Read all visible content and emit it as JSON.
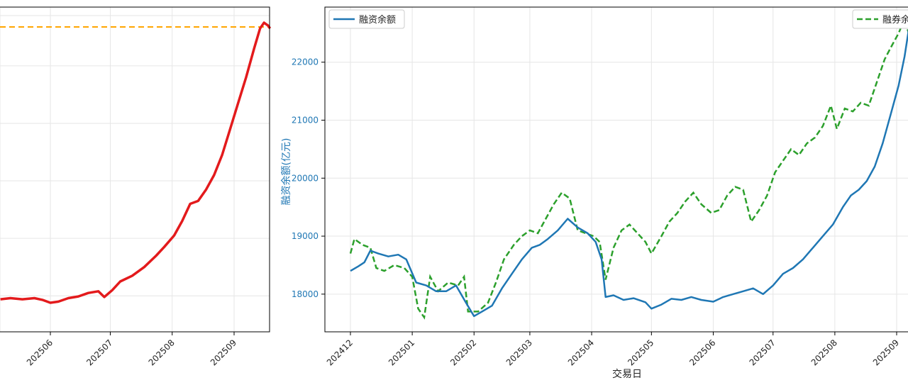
{
  "chart_data": [
    {
      "type": "line",
      "title": "",
      "xlabel": "",
      "ylabel": "",
      "x_tick_labels": [
        "202506",
        "202507",
        "202508",
        "202509"
      ],
      "x_visible_range": [
        "2025-05-07",
        "2025-09-20"
      ],
      "grid": true,
      "reference_line": {
        "style": "dashed",
        "color": "#ffa500",
        "level": "near series maximum"
      },
      "series": [
        {
          "color": "#e31a1c",
          "style": "solid",
          "points": [
            [
              "2025-05-07",
              17940
            ],
            [
              "2025-05-12",
              17960
            ],
            [
              "2025-05-18",
              17940
            ],
            [
              "2025-05-24",
              17960
            ],
            [
              "2025-05-28",
              17930
            ],
            [
              "2025-06-01",
              17880
            ],
            [
              "2025-06-05",
              17900
            ],
            [
              "2025-06-10",
              17960
            ],
            [
              "2025-06-15",
              17990
            ],
            [
              "2025-06-20",
              18050
            ],
            [
              "2025-06-25",
              18080
            ],
            [
              "2025-06-28",
              17980
            ],
            [
              "2025-07-02",
              18100
            ],
            [
              "2025-07-06",
              18250
            ],
            [
              "2025-07-12",
              18350
            ],
            [
              "2025-07-18",
              18500
            ],
            [
              "2025-07-24",
              18700
            ],
            [
              "2025-07-28",
              18850
            ],
            [
              "2025-08-02",
              19050
            ],
            [
              "2025-08-06",
              19300
            ],
            [
              "2025-08-10",
              19600
            ],
            [
              "2025-08-14",
              19650
            ],
            [
              "2025-08-18",
              19850
            ],
            [
              "2025-08-22",
              20100
            ],
            [
              "2025-08-26",
              20450
            ],
            [
              "2025-08-30",
              20900
            ],
            [
              "2025-09-03",
              21350
            ],
            [
              "2025-09-07",
              21800
            ],
            [
              "2025-09-11",
              22300
            ],
            [
              "2025-09-14",
              22650
            ],
            [
              "2025-09-16",
              22750
            ],
            [
              "2025-09-18",
              22700
            ],
            [
              "2025-09-19",
              22650
            ]
          ]
        }
      ]
    },
    {
      "type": "line",
      "title": "",
      "xlabel": "交易日",
      "ylabel": "融资余额(亿元)",
      "x_tick_labels": [
        "202412",
        "202501",
        "202502",
        "202503",
        "202504",
        "202505",
        "202506",
        "202507",
        "202508",
        "202509"
      ],
      "x_range": [
        "2024-12-01",
        "2025-09-01"
      ],
      "yticks": [
        18000,
        19000,
        20000,
        21000,
        22000
      ],
      "ylim": [
        17350,
        22950
      ],
      "grid": true,
      "legend_left": {
        "position": "top-left",
        "entries": [
          "融资余额"
        ]
      },
      "legend_right": {
        "position": "top-right",
        "entries": [
          "融券余"
        ]
      },
      "series": [
        {
          "name": "融资余额",
          "color": "#1f77b4",
          "style": "solid",
          "points": [
            [
              "2024-12-01",
              18400
            ],
            [
              "2024-12-05",
              18480
            ],
            [
              "2024-12-08",
              18550
            ],
            [
              "2024-12-11",
              18750
            ],
            [
              "2024-12-15",
              18700
            ],
            [
              "2024-12-20",
              18650
            ],
            [
              "2024-12-25",
              18680
            ],
            [
              "2024-12-29",
              18600
            ],
            [
              "2025-01-03",
              18200
            ],
            [
              "2025-01-08",
              18150
            ],
            [
              "2025-01-13",
              18050
            ],
            [
              "2025-01-18",
              18050
            ],
            [
              "2025-01-23",
              18150
            ],
            [
              "2025-01-28",
              17850
            ],
            [
              "2025-02-01",
              17620
            ],
            [
              "2025-02-05",
              17700
            ],
            [
              "2025-02-10",
              17800
            ],
            [
              "2025-02-15",
              18100
            ],
            [
              "2025-02-20",
              18350
            ],
            [
              "2025-02-25",
              18600
            ],
            [
              "2025-03-02",
              18800
            ],
            [
              "2025-03-06",
              18850
            ],
            [
              "2025-03-10",
              18950
            ],
            [
              "2025-03-15",
              19100
            ],
            [
              "2025-03-20",
              19300
            ],
            [
              "2025-03-25",
              19150
            ],
            [
              "2025-03-30",
              19050
            ],
            [
              "2025-04-03",
              18900
            ],
            [
              "2025-04-06",
              18600
            ],
            [
              "2025-04-08",
              17950
            ],
            [
              "2025-04-12",
              17980
            ],
            [
              "2025-04-17",
              17900
            ],
            [
              "2025-04-22",
              17930
            ],
            [
              "2025-04-28",
              17860
            ],
            [
              "2025-05-01",
              17750
            ],
            [
              "2025-05-06",
              17820
            ],
            [
              "2025-05-11",
              17920
            ],
            [
              "2025-05-16",
              17900
            ],
            [
              "2025-05-21",
              17950
            ],
            [
              "2025-05-26",
              17900
            ],
            [
              "2025-06-01",
              17870
            ],
            [
              "2025-06-06",
              17950
            ],
            [
              "2025-06-11",
              18000
            ],
            [
              "2025-06-16",
              18050
            ],
            [
              "2025-06-21",
              18100
            ],
            [
              "2025-06-26",
              18000
            ],
            [
              "2025-07-01",
              18150
            ],
            [
              "2025-07-06",
              18350
            ],
            [
              "2025-07-11",
              18450
            ],
            [
              "2025-07-16",
              18600
            ],
            [
              "2025-07-21",
              18800
            ],
            [
              "2025-07-26",
              19000
            ],
            [
              "2025-07-31",
              19200
            ],
            [
              "2025-08-05",
              19500
            ],
            [
              "2025-08-09",
              19700
            ],
            [
              "2025-08-13",
              19800
            ],
            [
              "2025-08-17",
              19950
            ],
            [
              "2025-08-21",
              20200
            ],
            [
              "2025-08-25",
              20600
            ],
            [
              "2025-08-29",
              21100
            ],
            [
              "2025-09-02",
              21600
            ],
            [
              "2025-09-05",
              22100
            ],
            [
              "2025-09-07",
              22550
            ],
            [
              "2025-09-08",
              22700
            ],
            [
              "2025-09-09",
              22600
            ]
          ]
        },
        {
          "name": "融券余",
          "color": "#2ca02c",
          "style": "dashed",
          "points": [
            [
              "2024-12-01",
              18700
            ],
            [
              "2024-12-03",
              18950
            ],
            [
              "2024-12-07",
              18850
            ],
            [
              "2024-12-11",
              18800
            ],
            [
              "2024-12-14",
              18450
            ],
            [
              "2024-12-18",
              18400
            ],
            [
              "2024-12-23",
              18500
            ],
            [
              "2024-12-28",
              18450
            ],
            [
              "2025-01-01",
              18300
            ],
            [
              "2025-01-04",
              17750
            ],
            [
              "2025-01-07",
              17600
            ],
            [
              "2025-01-10",
              18300
            ],
            [
              "2025-01-14",
              18050
            ],
            [
              "2025-01-19",
              18200
            ],
            [
              "2025-01-24",
              18150
            ],
            [
              "2025-01-27",
              18300
            ],
            [
              "2025-01-29",
              17700
            ],
            [
              "2025-02-03",
              17700
            ],
            [
              "2025-02-08",
              17850
            ],
            [
              "2025-02-12",
              18200
            ],
            [
              "2025-02-16",
              18600
            ],
            [
              "2025-02-21",
              18850
            ],
            [
              "2025-02-25",
              19000
            ],
            [
              "2025-03-01",
              19100
            ],
            [
              "2025-03-05",
              19050
            ],
            [
              "2025-03-09",
              19300
            ],
            [
              "2025-03-13",
              19550
            ],
            [
              "2025-03-17",
              19750
            ],
            [
              "2025-03-21",
              19650
            ],
            [
              "2025-03-25",
              19100
            ],
            [
              "2025-03-29",
              19050
            ],
            [
              "2025-04-02",
              19000
            ],
            [
              "2025-04-05",
              18900
            ],
            [
              "2025-04-08",
              18250
            ],
            [
              "2025-04-12",
              18800
            ],
            [
              "2025-04-16",
              19100
            ],
            [
              "2025-04-20",
              19200
            ],
            [
              "2025-04-24",
              19050
            ],
            [
              "2025-04-28",
              18900
            ],
            [
              "2025-05-01",
              18700
            ],
            [
              "2025-05-06",
              19000
            ],
            [
              "2025-05-10",
              19250
            ],
            [
              "2025-05-14",
              19400
            ],
            [
              "2025-05-18",
              19600
            ],
            [
              "2025-05-22",
              19750
            ],
            [
              "2025-05-26",
              19550
            ],
            [
              "2025-05-31",
              19400
            ],
            [
              "2025-06-04",
              19450
            ],
            [
              "2025-06-08",
              19700
            ],
            [
              "2025-06-12",
              19850
            ],
            [
              "2025-06-16",
              19800
            ],
            [
              "2025-06-20",
              19250
            ],
            [
              "2025-06-24",
              19450
            ],
            [
              "2025-06-28",
              19700
            ],
            [
              "2025-07-02",
              20100
            ],
            [
              "2025-07-06",
              20300
            ],
            [
              "2025-07-10",
              20500
            ],
            [
              "2025-07-14",
              20400
            ],
            [
              "2025-07-18",
              20600
            ],
            [
              "2025-07-22",
              20700
            ],
            [
              "2025-07-26",
              20900
            ],
            [
              "2025-07-30",
              21250
            ],
            [
              "2025-08-02",
              20850
            ],
            [
              "2025-08-06",
              21200
            ],
            [
              "2025-08-10",
              21150
            ],
            [
              "2025-08-14",
              21300
            ],
            [
              "2025-08-18",
              21250
            ],
            [
              "2025-08-22",
              21650
            ],
            [
              "2025-08-26",
              22050
            ],
            [
              "2025-08-29",
              22250
            ],
            [
              "2025-09-02",
              22500
            ],
            [
              "2025-09-05",
              22750
            ],
            [
              "2025-09-07",
              22500
            ],
            [
              "2025-09-09",
              22150
            ]
          ]
        }
      ]
    }
  ]
}
